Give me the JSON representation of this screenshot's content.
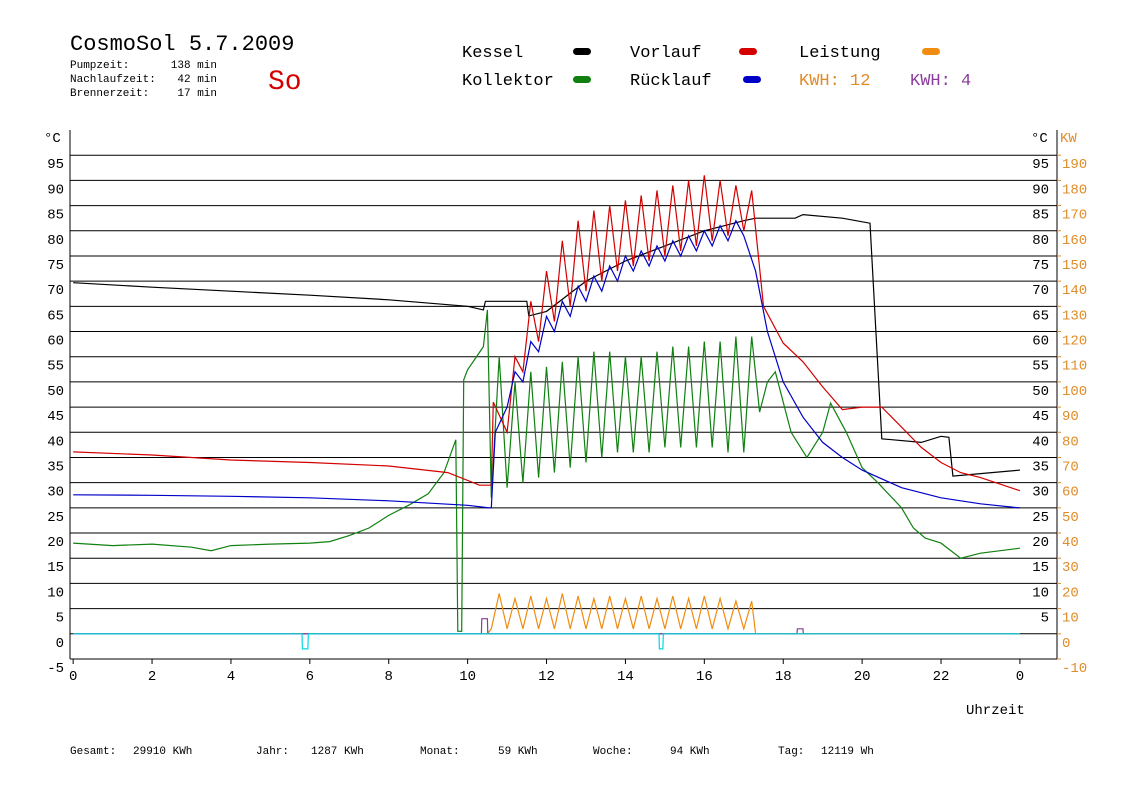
{
  "header": {
    "title": "CosmoSol 5.7.2009",
    "day": "So",
    "stats": [
      {
        "label": "Pumpzeit:",
        "value": "138 min"
      },
      {
        "label": "Nachlaufzeit:",
        "value": "42 min"
      },
      {
        "label": "Brennerzeit:",
        "value": "17 min"
      }
    ]
  },
  "footer": [
    {
      "label": "Gesamt:",
      "value": "29910 KWh"
    },
    {
      "label": "Jahr:",
      "value": "1287 KWh"
    },
    {
      "label": "Monat:",
      "value": "59 KWh"
    },
    {
      "label": "Woche:",
      "value": "94 KWh"
    },
    {
      "label": "Tag:",
      "value": "12119 Wh"
    }
  ],
  "chart_data": {
    "type": "line",
    "x_label": "Uhrzeit",
    "y_label": "°C",
    "y2_label_c": "°C",
    "y2_label": "KW",
    "xlim": [
      -0.08,
      24.94
    ],
    "xticks": [
      0,
      2,
      4,
      6,
      8,
      10,
      12,
      14,
      16,
      18,
      20,
      22,
      {
        "value": 24,
        "label": "0"
      }
    ],
    "ylim": [
      -5,
      100
    ],
    "yticks": [
      -5,
      0,
      5,
      10,
      15,
      20,
      25,
      30,
      35,
      40,
      45,
      50,
      55,
      60,
      65,
      70,
      75,
      80,
      85,
      90,
      95
    ],
    "y2lim": [
      -10,
      200
    ],
    "y2ticks": [
      -10,
      0,
      10,
      20,
      30,
      40,
      50,
      60,
      70,
      80,
      90,
      100,
      110,
      120,
      130,
      140,
      150,
      160,
      170,
      180,
      190
    ],
    "y2color": "#e08c28",
    "grid": true,
    "annotations": [
      {
        "text": "KWH: 12",
        "color": "#e08c28"
      },
      {
        "text": "KWH: 4",
        "color": "#8a3c9a"
      }
    ],
    "series": [
      {
        "name": "Kessel",
        "color": "#000000",
        "x": [
          0,
          2,
          4,
          6,
          8,
          10,
          10.4,
          10.45,
          11.5,
          11.55,
          12,
          13,
          14,
          15,
          16,
          17,
          17.3,
          18.3,
          18.5,
          19.5,
          20.2,
          20.35,
          20.5,
          21.5,
          22,
          22.2,
          22.3,
          23,
          24
        ],
        "values": [
          69.7,
          68.8,
          68,
          67.2,
          66.3,
          65,
          64.3,
          66,
          66,
          63.1,
          64,
          70,
          74,
          77,
          80,
          82,
          82.5,
          82.5,
          83.2,
          82.5,
          81.5,
          60,
          38.7,
          38,
          39.2,
          39,
          31.3,
          31.8,
          32.5
        ]
      },
      {
        "name": "Kollektor",
        "color": "#108010",
        "x": [
          0,
          1,
          2,
          3,
          3.5,
          4,
          5,
          6,
          6.5,
          7,
          7.5,
          8,
          8.5,
          9,
          9.4,
          9.7,
          9.75,
          9.85,
          9.9,
          10,
          10.4,
          10.5,
          10.6,
          10.8,
          11,
          11.2,
          11.4,
          11.6,
          11.8,
          12,
          12.2,
          12.4,
          12.6,
          12.8,
          13,
          13.2,
          13.4,
          13.6,
          13.8,
          14,
          14.2,
          14.4,
          14.6,
          14.8,
          15,
          15.2,
          15.4,
          15.6,
          15.8,
          16,
          16.2,
          16.4,
          16.6,
          16.8,
          17,
          17.2,
          17.4,
          17.6,
          17.8,
          18.2,
          18.6,
          19,
          19.2,
          19.6,
          20,
          20.4,
          21,
          21.3,
          21.6,
          22,
          22.5,
          23,
          24
        ],
        "values": [
          18,
          17.5,
          17.8,
          17.2,
          16.5,
          17.5,
          17.8,
          18,
          18.3,
          19.5,
          21,
          23.5,
          25.5,
          27.8,
          32,
          38.5,
          0.5,
          0.5,
          50.4,
          52.4,
          57,
          64.3,
          27,
          55,
          29,
          50,
          30,
          52,
          31,
          53,
          32,
          54,
          33,
          55,
          34,
          56,
          35,
          56,
          36,
          55,
          36,
          55,
          36,
          56,
          37,
          57,
          37,
          57,
          37,
          58,
          37,
          58,
          36,
          59,
          36,
          59,
          44,
          50,
          52,
          40,
          35,
          40,
          45.8,
          40,
          33,
          30,
          25,
          21,
          19,
          18,
          15,
          16,
          17
        ]
      },
      {
        "name": "Vorlauf",
        "color": "#d40000",
        "x": [
          0,
          2,
          4,
          6,
          8,
          9.5,
          10.3,
          10.6,
          10.65,
          11,
          11.2,
          11.4,
          11.6,
          11.8,
          12,
          12.2,
          12.4,
          12.6,
          12.8,
          13,
          13.2,
          13.4,
          13.6,
          13.8,
          14,
          14.2,
          14.4,
          14.6,
          14.8,
          15,
          15.2,
          15.4,
          15.6,
          15.8,
          16,
          16.2,
          16.4,
          16.6,
          16.8,
          17,
          17.2,
          17.5,
          18,
          18.5,
          19,
          19.5,
          20,
          20.5,
          21,
          21.5,
          22,
          22.5,
          23,
          24
        ],
        "values": [
          36.1,
          35.5,
          34.5,
          34,
          33.3,
          32,
          29.5,
          29.5,
          46,
          40,
          55,
          52,
          66,
          58,
          72,
          62,
          78,
          65,
          82,
          68,
          84,
          70,
          85,
          72,
          86,
          73,
          87,
          74,
          88,
          75,
          89,
          76,
          90,
          77,
          91,
          78,
          90,
          79,
          89,
          80,
          88,
          65,
          57.7,
          54,
          49,
          44.5,
          45,
          45,
          41,
          37,
          34,
          32,
          31,
          28.4
        ]
      },
      {
        "name": "Rücklauf",
        "color": "#0000c8",
        "x": [
          0,
          2,
          4,
          6,
          8,
          10,
          10.55,
          10.6,
          10.7,
          11,
          11.2,
          11.4,
          11.6,
          11.8,
          12,
          12.2,
          12.4,
          12.6,
          12.8,
          13,
          13.2,
          13.4,
          13.6,
          13.8,
          14,
          14.2,
          14.4,
          14.6,
          14.8,
          15,
          15.2,
          15.4,
          15.6,
          15.8,
          16,
          16.2,
          16.4,
          16.6,
          16.8,
          17,
          17.3,
          17.6,
          18,
          18.5,
          19,
          19.5,
          20,
          21,
          22,
          23,
          24
        ],
        "values": [
          27.6,
          27.5,
          27.3,
          27,
          26.4,
          25.5,
          25,
          25,
          40,
          45,
          52,
          50,
          58,
          56,
          63,
          60,
          66,
          63,
          69,
          66,
          71,
          68,
          73,
          70,
          75,
          72,
          76,
          73,
          77,
          74,
          78,
          75,
          79,
          76,
          80,
          77,
          81,
          78,
          82,
          79,
          72,
          60,
          50,
          43,
          38,
          35,
          32.5,
          29,
          27,
          25.8,
          25
        ]
      },
      {
        "name": "Leistung",
        "color": "#f08c10",
        "axis": "y2",
        "x": [
          10.5,
          10.6,
          10.8,
          11,
          11.2,
          11.4,
          11.6,
          11.8,
          12,
          12.2,
          12.4,
          12.6,
          12.8,
          13,
          13.2,
          13.4,
          13.6,
          13.8,
          14,
          14.2,
          14.4,
          14.6,
          14.8,
          15,
          15.2,
          15.4,
          15.6,
          15.8,
          16,
          16.2,
          16.4,
          16.6,
          16.8,
          17,
          17.2,
          17.3,
          24
        ],
        "values": [
          0,
          2,
          16,
          2,
          14,
          2,
          15,
          2,
          14,
          2,
          16,
          2,
          15,
          2,
          14,
          2,
          15,
          2,
          14,
          2,
          15,
          2,
          14,
          2,
          15,
          2,
          14,
          2,
          15,
          2,
          14,
          2,
          13,
          2,
          13,
          0,
          0
        ]
      },
      {
        "color": "#8a3c9a",
        "x": [
          0,
          10.35,
          10.36,
          10.5,
          10.51,
          18.35,
          18.36,
          18.5,
          18.51,
          24
        ],
        "values": [
          0,
          0,
          3,
          3,
          0,
          0,
          1,
          1,
          0,
          0
        ]
      },
      {
        "color": "#00d8e0",
        "x": [
          0,
          5.8,
          5.81,
          5.95,
          5.96,
          14.85,
          14.86,
          14.95,
          14.96,
          24
        ],
        "values": [
          0,
          0,
          -3,
          -3,
          0,
          0,
          -3,
          -3,
          0,
          0
        ]
      }
    ]
  }
}
